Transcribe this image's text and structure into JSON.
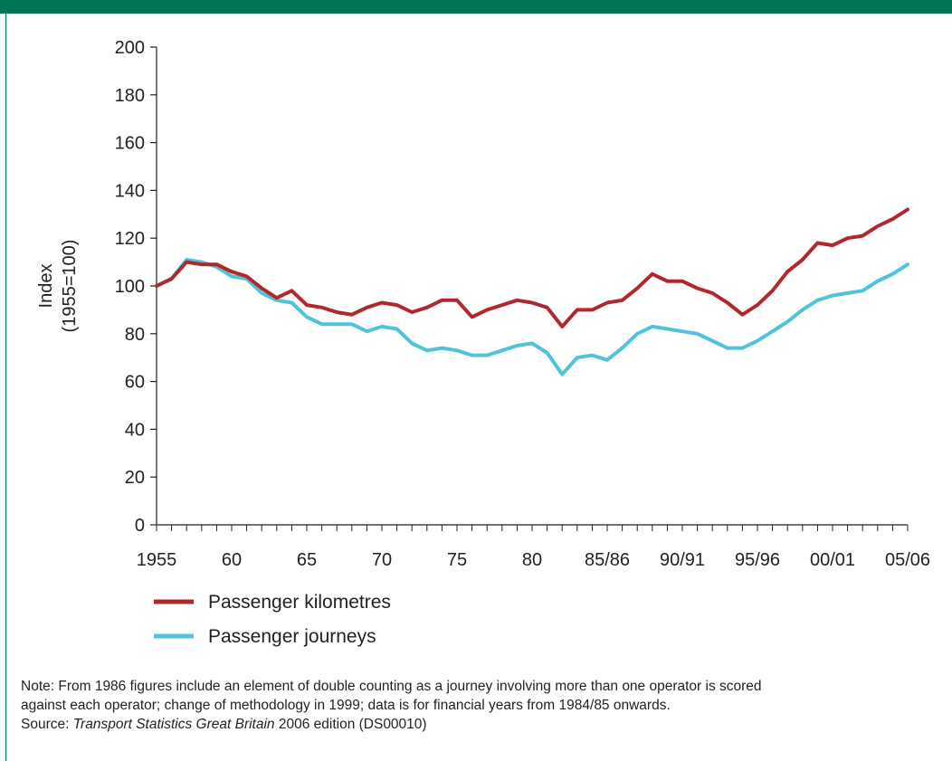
{
  "chart_data": {
    "type": "line",
    "ylabel": [
      "Index",
      "(1955=100)"
    ],
    "ylim": [
      0,
      200
    ],
    "yticks": [
      0,
      20,
      40,
      60,
      80,
      100,
      120,
      140,
      160,
      180,
      200
    ],
    "x_tick_labels": [
      "1955",
      "60",
      "65",
      "70",
      "75",
      "80",
      "85/86",
      "90/91",
      "95/96",
      "00/01",
      "05/06"
    ],
    "x_tick_years": [
      1955,
      1960,
      1965,
      1970,
      1975,
      1980,
      1985,
      1990,
      1995,
      2000,
      2005
    ],
    "xlim": [
      1955,
      2005
    ],
    "grid": false,
    "legend_position": "bottom-left",
    "series": [
      {
        "name": "Passenger kilometres",
        "color": "#b0282c",
        "years": [
          1955,
          1956,
          1957,
          1958,
          1959,
          1960,
          1961,
          1962,
          1963,
          1964,
          1965,
          1966,
          1967,
          1968,
          1969,
          1970,
          1971,
          1972,
          1973,
          1974,
          1975,
          1976,
          1977,
          1978,
          1979,
          1980,
          1981,
          1982,
          1983,
          1984,
          1985,
          1986,
          1987,
          1988,
          1989,
          1990,
          1991,
          1992,
          1993,
          1994,
          1995,
          1996,
          1997,
          1998,
          1999,
          2000,
          2001,
          2002,
          2003,
          2004,
          2005
        ],
        "values": [
          100,
          103,
          110,
          109,
          109,
          106,
          104,
          99,
          95,
          98,
          92,
          91,
          89,
          88,
          91,
          93,
          92,
          89,
          91,
          94,
          94,
          87,
          90,
          92,
          94,
          93,
          91,
          83,
          90,
          90,
          93,
          94,
          99,
          105,
          102,
          102,
          99,
          97,
          93,
          88,
          92,
          98,
          106,
          111,
          118,
          117,
          120,
          121,
          125,
          128,
          132
        ]
      },
      {
        "name": "Passenger journeys",
        "color": "#4ec3d9",
        "years": [
          1955,
          1956,
          1957,
          1958,
          1959,
          1960,
          1961,
          1962,
          1963,
          1964,
          1965,
          1966,
          1967,
          1968,
          1969,
          1970,
          1971,
          1972,
          1973,
          1974,
          1975,
          1976,
          1977,
          1978,
          1979,
          1980,
          1981,
          1982,
          1983,
          1984,
          1985,
          1986,
          1987,
          1988,
          1989,
          1990,
          1991,
          1992,
          1993,
          1994,
          1995,
          1996,
          1997,
          1998,
          1999,
          2000,
          2001,
          2002,
          2003,
          2004,
          2005
        ],
        "values": [
          100,
          103,
          111,
          110,
          108,
          104,
          103,
          97,
          94,
          93,
          87,
          84,
          84,
          84,
          81,
          83,
          82,
          76,
          73,
          74,
          73,
          71,
          71,
          73,
          75,
          76,
          72,
          63,
          70,
          71,
          69,
          74,
          80,
          83,
          82,
          81,
          80,
          77,
          74,
          74,
          77,
          81,
          85,
          90,
          94,
          96,
          97,
          98,
          102,
          105,
          109
        ]
      }
    ]
  },
  "note": {
    "line1": "Note: From 1986 figures include an element of double counting as a journey involving more than one operator is scored",
    "line2": "against each operator; change of methodology in 1999; data is for financial years from 1984/85 onwards.",
    "source_prefix": "Source: ",
    "source_title": "Transport Statistics Great Britain",
    "source_suffix": " 2006 edition (DS00010)"
  }
}
